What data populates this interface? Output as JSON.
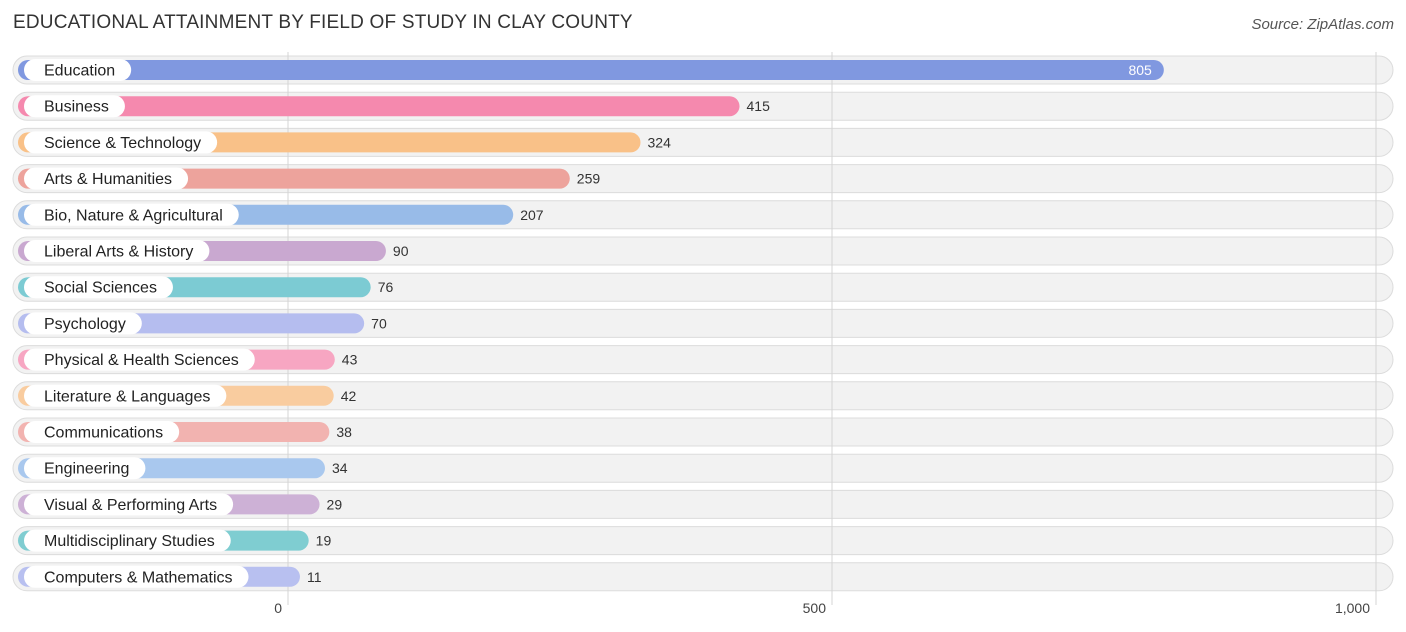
{
  "header": {
    "title": "EDUCATIONAL ATTAINMENT BY FIELD OF STUDY IN CLAY COUNTY",
    "source": "Source: ZipAtlas.com"
  },
  "chart_data": {
    "type": "bar",
    "orientation": "horizontal",
    "title": "EDUCATIONAL ATTAINMENT BY FIELD OF STUDY IN CLAY COUNTY",
    "categories": [
      "Education",
      "Business",
      "Science & Technology",
      "Arts & Humanities",
      "Bio, Nature & Agricultural",
      "Liberal Arts & History",
      "Social Sciences",
      "Psychology",
      "Physical & Health Sciences",
      "Literature & Languages",
      "Communications",
      "Engineering",
      "Visual & Performing Arts",
      "Multidisciplinary Studies",
      "Computers & Mathematics"
    ],
    "values": [
      805,
      415,
      324,
      259,
      207,
      90,
      76,
      70,
      43,
      42,
      38,
      34,
      29,
      19,
      11
    ],
    "value_labels": [
      "805",
      "415",
      "324",
      "259",
      "207",
      "90",
      "76",
      "70",
      "43",
      "42",
      "38",
      "34",
      "29",
      "19",
      "11"
    ],
    "colors": [
      "#8098e0",
      "#f589ae",
      "#f9c188",
      "#eda39c",
      "#98bbe8",
      "#c9a8d0",
      "#7ccbd3",
      "#b5bdef",
      "#f7a6c2",
      "#f9cc9f",
      "#f2b3b0",
      "#a9c8ee",
      "#cdb1d6",
      "#7fcdd1",
      "#b8c0f0"
    ],
    "xlim": [
      0,
      1000
    ],
    "x_ticks": [
      0,
      500,
      1000
    ],
    "x_tick_labels": [
      "0",
      "500",
      "1,000"
    ],
    "grid": true
  }
}
